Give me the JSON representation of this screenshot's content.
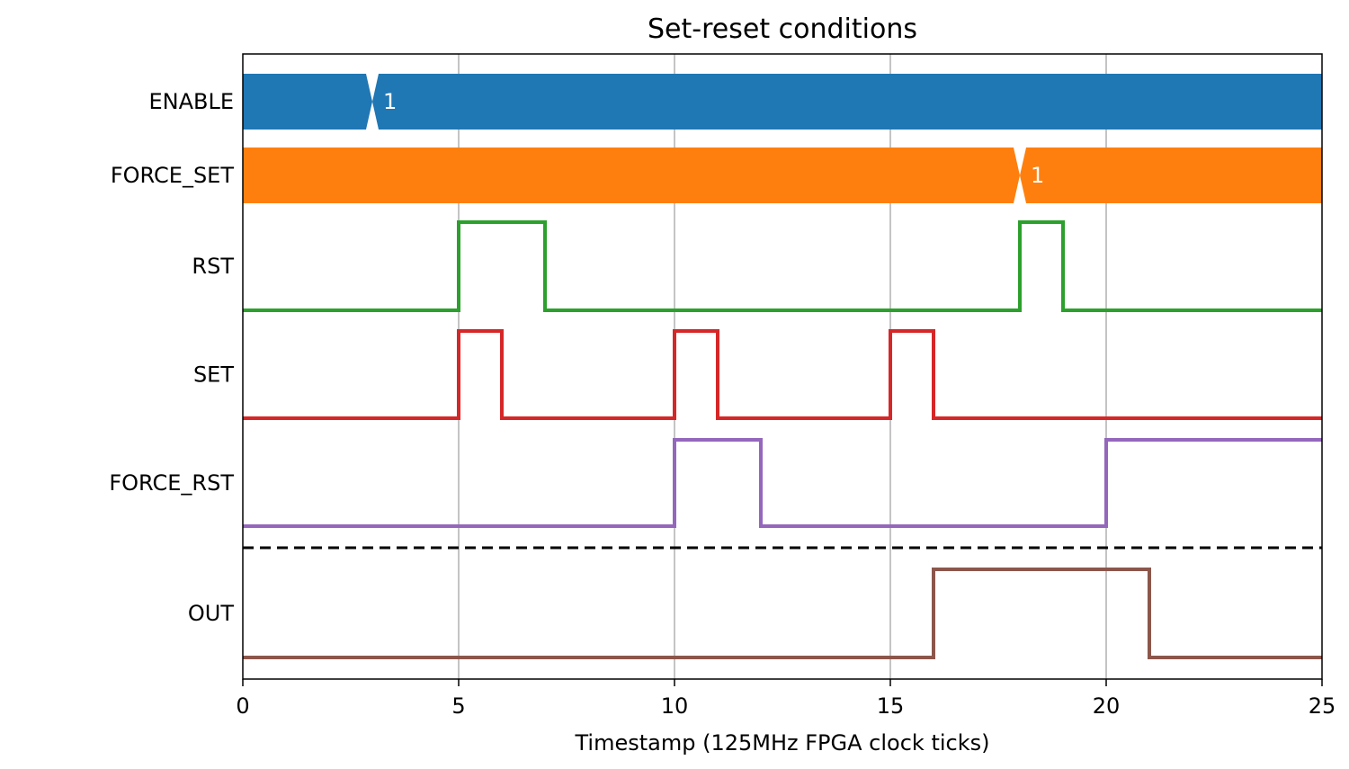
{
  "chart_data": {
    "type": "line",
    "title": "Set-reset conditions",
    "xlabel": "Timestamp (125MHz FPGA clock ticks)",
    "ylabel": "",
    "xlim": [
      0,
      25
    ],
    "xticks": [
      "0",
      "5",
      "10",
      "15",
      "20",
      "25"
    ],
    "grid": "vertical",
    "signals": [
      {
        "name": "ENABLE",
        "kind": "bus",
        "color": "#1f77b4",
        "x": [
          0,
          3
        ],
        "values": [
          "",
          "1"
        ]
      },
      {
        "name": "FORCE_SET",
        "kind": "bus",
        "color": "#ff7f0e",
        "x": [
          0,
          18
        ],
        "values": [
          "",
          "1"
        ]
      },
      {
        "name": "RST",
        "kind": "digital",
        "color": "#2ca02c",
        "x": [
          0,
          5,
          7,
          18,
          19
        ],
        "values": [
          0,
          1,
          0,
          1,
          0
        ]
      },
      {
        "name": "SET",
        "kind": "digital",
        "color": "#d62728",
        "x": [
          0,
          5,
          6,
          10,
          11,
          15,
          16
        ],
        "values": [
          0,
          1,
          0,
          1,
          0,
          1,
          0
        ]
      },
      {
        "name": "FORCE_RST",
        "kind": "digital",
        "color": "#9467bd",
        "x": [
          0,
          10,
          12,
          20
        ],
        "values": [
          0,
          1,
          0,
          1
        ]
      },
      {
        "name": "OUT",
        "kind": "digital",
        "color": "#8c564b",
        "x": [
          0,
          16,
          21
        ],
        "values": [
          0,
          1,
          0
        ]
      }
    ]
  }
}
